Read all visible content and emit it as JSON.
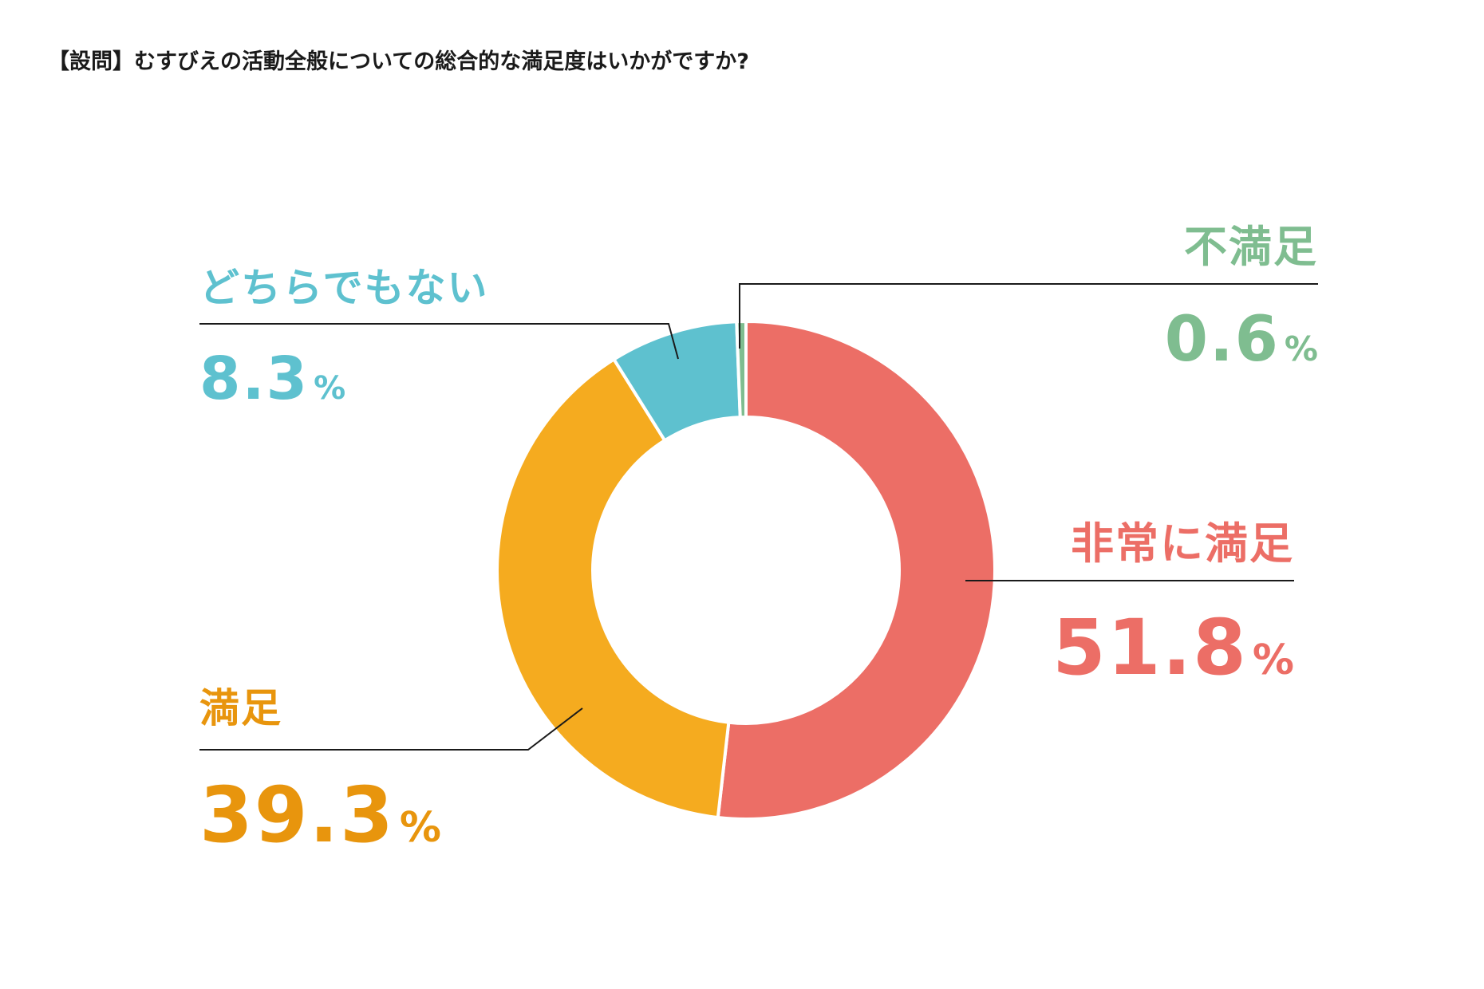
{
  "question": "【設問】むすびえの活動全般についての総合的な満足度はいかがですか?",
  "chart_data": {
    "type": "pie",
    "variant": "donut",
    "slices": [
      {
        "label": "非常に満足",
        "value": 51.8,
        "display_value": "51.8",
        "unit": "%",
        "color": "#ec6e66",
        "text_color": "#ec6e66"
      },
      {
        "label": "満足",
        "value": 39.3,
        "display_value": "39.3",
        "unit": "%",
        "color": "#f5ab1f",
        "text_color": "#e8950d"
      },
      {
        "label": "どちらでもない",
        "value": 8.3,
        "display_value": "8.3",
        "unit": "%",
        "color": "#5ec1cf",
        "text_color": "#5ec1cf"
      },
      {
        "label": "不満足",
        "value": 0.6,
        "display_value": "0.6",
        "unit": "%",
        "color": "#7fbd90",
        "text_color": "#7fbd90"
      }
    ],
    "start_angle": "top",
    "direction": "clockwise",
    "leader_line_color": "#1a1a1a"
  }
}
